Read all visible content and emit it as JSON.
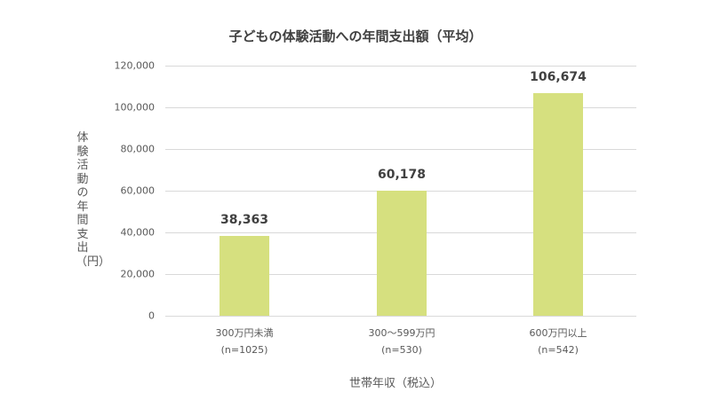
{
  "chart_data": {
    "type": "bar",
    "title": "子どもの体験活動への年間支出額（平均）",
    "xlabel": "世帯年収（税込）",
    "ylabel": "体験活動の年間支出（円）",
    "categories": [
      "300万円未満 (n=1025)",
      "300〜599万円 (n=530)",
      "600万円以上 (n=542)"
    ],
    "category_lines": [
      [
        "300万円未満",
        "(n=1025)"
      ],
      [
        "300〜599万円",
        "(n=530)"
      ],
      [
        "600万円以上",
        "(n=542)"
      ]
    ],
    "values": [
      38363,
      60178,
      106674
    ],
    "value_labels": [
      "38,363",
      "60,178",
      "106,674"
    ],
    "ylim": [
      0,
      120000
    ],
    "yticks": [
      0,
      20000,
      40000,
      60000,
      80000,
      100000,
      120000
    ],
    "ytick_labels": [
      "0",
      "20,000",
      "40,000",
      "60,000",
      "80,000",
      "100,000",
      "120,000"
    ],
    "grid": true,
    "legend": "none",
    "bar_color": "#d6e07f"
  }
}
